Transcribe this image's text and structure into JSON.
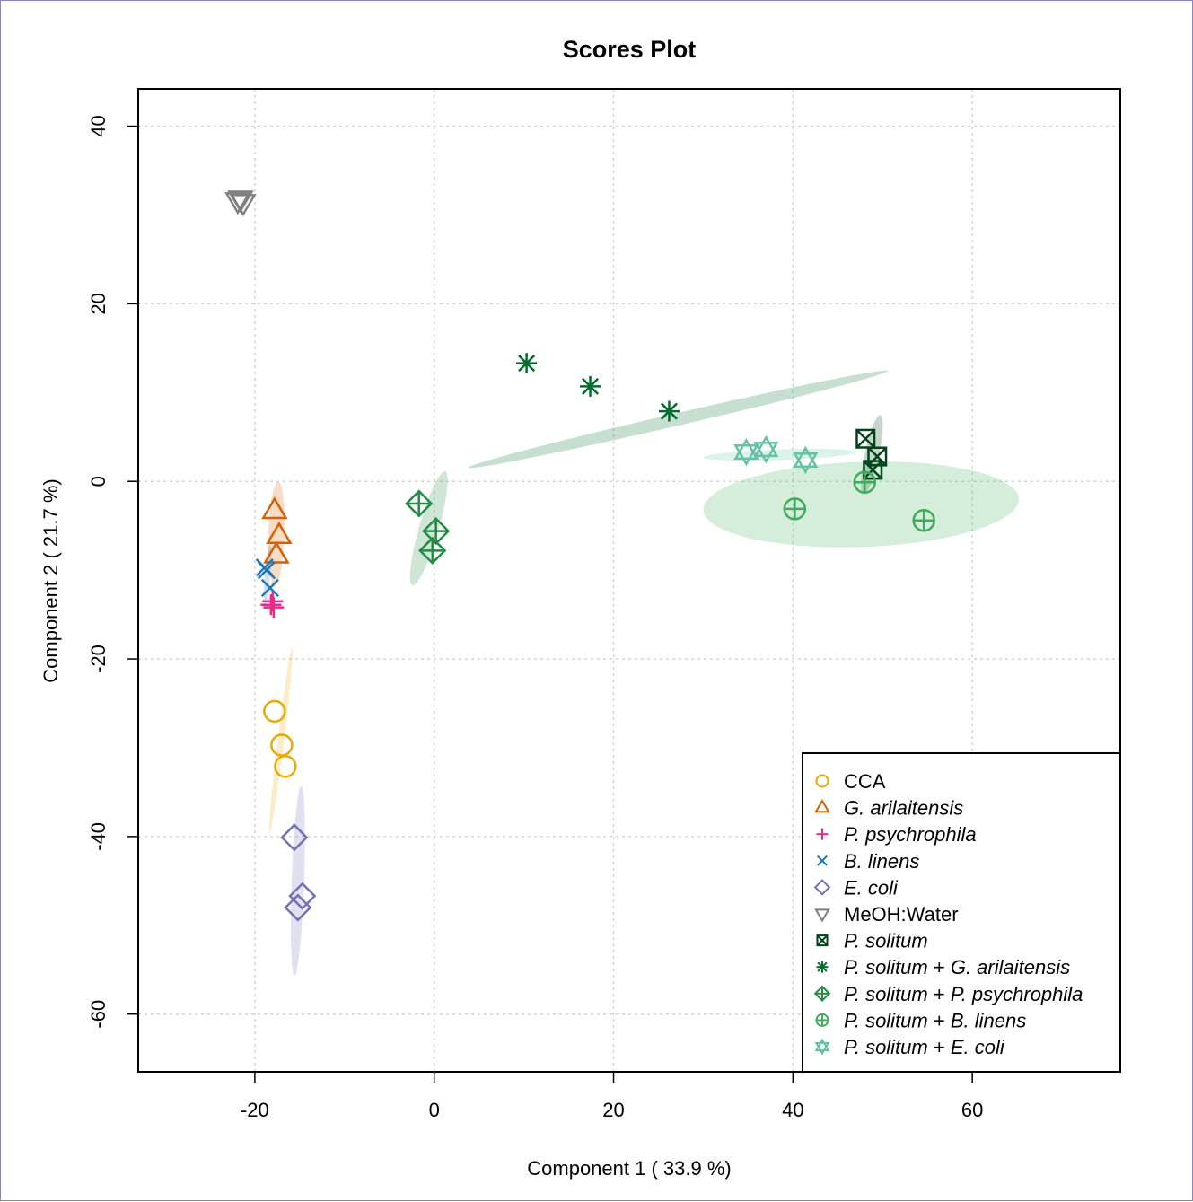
{
  "chart_data": {
    "type": "scatter",
    "title": "Scores Plot",
    "xlabel": "Component 1 ( 33.9 %)",
    "ylabel": "Component 2 ( 21.7 %)",
    "xlim": [
      -33,
      76.5
    ],
    "ylim": [
      -66.5,
      44.2
    ],
    "xticks": [
      -20,
      0,
      20,
      40,
      60
    ],
    "yticks": [
      -60,
      -40,
      -20,
      0,
      20,
      40
    ],
    "xtick_labels": [
      "-20",
      "0",
      "20",
      "40",
      "60"
    ],
    "ytick_labels": [
      "-60",
      "-40",
      "-20",
      "0",
      "20",
      "40"
    ],
    "grid": true,
    "legend_position": "bottom-right",
    "series": [
      {
        "name": "CCA",
        "label_parts": [
          "CCA"
        ],
        "italic": [
          false
        ],
        "marker": "circle",
        "color": "#e6ab02",
        "points": [
          [
            -17.8,
            -25.9
          ],
          [
            -17.0,
            -29.7
          ],
          [
            -16.6,
            -32.1
          ]
        ],
        "ellipse": {
          "cx": -17.1,
          "cy": -29.2,
          "rx": 10.5,
          "ry": 0.35,
          "angle": -83,
          "color": "#e6ab02"
        }
      },
      {
        "name": "G. arilaitensis",
        "label_parts": [
          "G. arilaitensis"
        ],
        "italic": [
          true
        ],
        "marker": "triangle",
        "color": "#d95f02",
        "points": [
          [
            -17.8,
            -3.3
          ],
          [
            -17.3,
            -6.1
          ],
          [
            -17.6,
            -8.3
          ]
        ],
        "ellipse": {
          "cx": -17.6,
          "cy": -5.9,
          "rx": 5.8,
          "ry": 0.9,
          "angle": -88,
          "color": "#d95f02"
        }
      },
      {
        "name": "P. psychrophila",
        "label_parts": [
          "P. psychrophila"
        ],
        "italic": [
          true
        ],
        "marker": "plus",
        "color": "#e7298a",
        "points": [
          [
            -18.0,
            -13.5
          ],
          [
            -17.9,
            -14.2
          ],
          [
            -18.2,
            -13.9
          ]
        ],
        "ellipse": null
      },
      {
        "name": "B. linens",
        "label_parts": [
          "B. linens"
        ],
        "italic": [
          true
        ],
        "marker": "cross",
        "color": "#1f78b4",
        "points": [
          [
            -18.9,
            -9.7
          ],
          [
            -18.3,
            -12.0
          ],
          [
            -18.7,
            -10.0
          ]
        ],
        "ellipse": {
          "cx": -18.6,
          "cy": -10.6,
          "rx": 3.4,
          "ry": 0.3,
          "angle": -85,
          "color": "#1f78b4"
        }
      },
      {
        "name": "E. coli",
        "label_parts": [
          "E. coli"
        ],
        "italic": [
          true
        ],
        "marker": "diamond",
        "color": "#7570b3",
        "points": [
          [
            -15.6,
            -40.1
          ],
          [
            -14.7,
            -46.7
          ],
          [
            -15.2,
            -48.0
          ]
        ],
        "ellipse": {
          "cx": -15.2,
          "cy": -45.0,
          "rx": 10.6,
          "ry": 0.7,
          "angle": -88,
          "color": "#7570b3"
        }
      },
      {
        "name": "MeOH:Water",
        "label_parts": [
          "MeOH:Water"
        ],
        "italic": [
          false
        ],
        "marker": "triangle-down",
        "color": "#808080",
        "points": [
          [
            -21.9,
            31.6
          ],
          [
            -21.3,
            31.4
          ],
          [
            -21.6,
            31.8
          ]
        ],
        "ellipse": null
      },
      {
        "name": "P. solitum",
        "label_parts": [
          "P. solitum"
        ],
        "italic": [
          true
        ],
        "marker": "square-x",
        "color": "#00441b",
        "points": [
          [
            48.1,
            4.8
          ],
          [
            49.4,
            2.8
          ],
          [
            48.9,
            1.3
          ]
        ],
        "ellipse": {
          "cx": 48.8,
          "cy": 3.0,
          "rx": 4.5,
          "ry": 0.8,
          "angle": -78,
          "color": "#00441b"
        }
      },
      {
        "name": "P. solitum + G. arilaitensis",
        "label_parts": [
          "P. solitum",
          " + ",
          "G. arilaitensis"
        ],
        "italic": [
          true,
          false,
          true
        ],
        "marker": "asterisk",
        "color": "#006d2c",
        "points": [
          [
            10.3,
            13.3
          ],
          [
            17.4,
            10.7
          ],
          [
            26.2,
            7.9
          ]
        ],
        "ellipse": {
          "cx": 27.2,
          "cy": 7.0,
          "rx": 24.0,
          "ry": 0.7,
          "angle": -13,
          "color": "#006d2c"
        }
      },
      {
        "name": "P. solitum + P. psychrophila",
        "label_parts": [
          "P. solitum",
          " + ",
          "P. psychrophila"
        ],
        "italic": [
          true,
          false,
          true
        ],
        "marker": "diamond-plus",
        "color": "#238b45",
        "points": [
          [
            -1.7,
            -2.5
          ],
          [
            0.2,
            -5.6
          ],
          [
            -0.2,
            -7.8
          ]
        ],
        "ellipse": {
          "cx": -0.6,
          "cy": -5.3,
          "rx": 6.6,
          "ry": 1.1,
          "angle": -74,
          "color": "#238b45"
        }
      },
      {
        "name": "P. solitum + B. linens",
        "label_parts": [
          "P. solitum",
          " + ",
          "B. linens"
        ],
        "italic": [
          true,
          false,
          true
        ],
        "marker": "circle-plus",
        "color": "#41ab5d",
        "points": [
          [
            40.2,
            -3.1
          ],
          [
            48.0,
            -0.1
          ],
          [
            54.6,
            -4.4
          ]
        ],
        "ellipse": {
          "cx": 47.6,
          "cy": -2.6,
          "rx": 17.6,
          "ry": 4.8,
          "angle": -2,
          "color": "#41ab5d"
        }
      },
      {
        "name": "P. solitum + E. coli",
        "label_parts": [
          "P. solitum",
          " + ",
          "E. coli"
        ],
        "italic": [
          true,
          false,
          true
        ],
        "marker": "star-of-david",
        "color": "#66c2a4",
        "points": [
          [
            34.8,
            3.3
          ],
          [
            37.0,
            3.6
          ],
          [
            41.4,
            2.4
          ]
        ],
        "ellipse": {
          "cx": 38.5,
          "cy": 3.0,
          "rx": 8.5,
          "ry": 0.6,
          "angle": -2,
          "color": "#66c2a4"
        }
      }
    ]
  }
}
